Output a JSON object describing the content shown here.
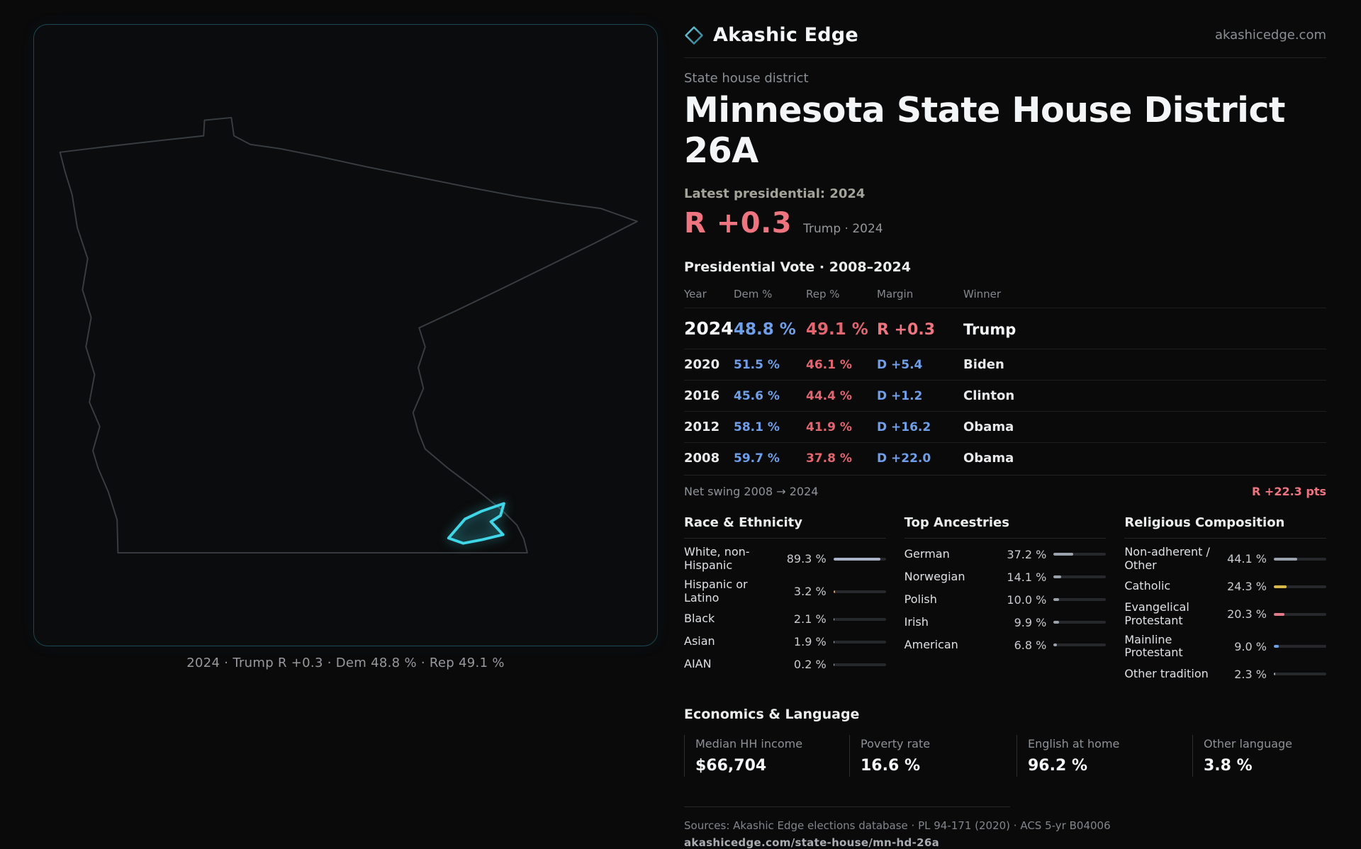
{
  "brand": {
    "name": "Akashic Edge",
    "domain": "akashicedge.com"
  },
  "page": {
    "kicker": "State house district",
    "title": "Minnesota State House District 26A",
    "latest_label": "Latest presidential: 2024",
    "headline_margin": "R +0.3",
    "headline_sub": "Trump · 2024"
  },
  "map": {
    "caption": "2024 · Trump R +0.3 · Dem 48.8 % · Rep 49.1 %"
  },
  "vote_table": {
    "title": "Presidential Vote · 2008–2024",
    "columns": [
      "Year",
      "Dem %",
      "Rep %",
      "Margin",
      "Winner"
    ],
    "rows": [
      {
        "year": "2024",
        "dem": "48.8 %",
        "rep": "49.1 %",
        "margin": "R +0.3",
        "winner": "Trump",
        "margin_color": "#ee7580"
      },
      {
        "year": "2020",
        "dem": "51.5 %",
        "rep": "46.1 %",
        "margin": "D +5.4",
        "winner": "Biden",
        "margin_color": "#6f9fe8"
      },
      {
        "year": "2016",
        "dem": "45.6 %",
        "rep": "44.4 %",
        "margin": "D +1.2",
        "winner": "Clinton",
        "margin_color": "#6f9fe8"
      },
      {
        "year": "2012",
        "dem": "58.1 %",
        "rep": "41.9 %",
        "margin": "D +16.2",
        "winner": "Obama",
        "margin_color": "#6f9fe8"
      },
      {
        "year": "2008",
        "dem": "59.7 %",
        "rep": "37.8 %",
        "margin": "D +22.0",
        "winner": "Obama",
        "margin_color": "#6f9fe8"
      }
    ]
  },
  "net_swing": {
    "label": "Net swing 2008 → 2024",
    "value": "R +22.3 pts"
  },
  "demographics": {
    "race": {
      "title": "Race & Ethnicity",
      "rows": [
        {
          "label": "White, non-Hispanic",
          "value": "89.3 %",
          "pct": 89.3,
          "color": "#a9b2c6"
        },
        {
          "label": "Hispanic or Latino",
          "value": "3.2 %",
          "pct": 3.2,
          "color": "#d99a5b"
        },
        {
          "label": "Black",
          "value": "2.1 %",
          "pct": 2.1,
          "color": "#a9b2c6"
        },
        {
          "label": "Asian",
          "value": "1.9 %",
          "pct": 1.9,
          "color": "#a9b2c6"
        },
        {
          "label": "AIAN",
          "value": "0.2 %",
          "pct": 0.2,
          "color": "#a9b2c6"
        }
      ]
    },
    "ancestry": {
      "title": "Top Ancestries",
      "rows": [
        {
          "label": "German",
          "value": "37.2 %",
          "pct": 37.2,
          "color": "#9aa2ad"
        },
        {
          "label": "Norwegian",
          "value": "14.1 %",
          "pct": 14.1,
          "color": "#9aa2ad"
        },
        {
          "label": "Polish",
          "value": "10.0 %",
          "pct": 10.0,
          "color": "#9aa2ad"
        },
        {
          "label": "Irish",
          "value": "9.9 %",
          "pct": 9.9,
          "color": "#9aa2ad"
        },
        {
          "label": "American",
          "value": "6.8 %",
          "pct": 6.8,
          "color": "#9aa2ad"
        }
      ]
    },
    "religion": {
      "title": "Religious Composition",
      "rows": [
        {
          "label": "Non-adherent / Other",
          "value": "44.1 %",
          "pct": 44.1,
          "color": "#9aa2ad"
        },
        {
          "label": "Catholic",
          "value": "24.3 %",
          "pct": 24.3,
          "color": "#d9b84a"
        },
        {
          "label": "Evangelical Protestant",
          "value": "20.3 %",
          "pct": 20.3,
          "color": "#e07a88"
        },
        {
          "label": "Mainline Protestant",
          "value": "9.0 %",
          "pct": 9.0,
          "color": "#6f9fe8"
        },
        {
          "label": "Other tradition",
          "value": "2.3 %",
          "pct": 2.3,
          "color": "#9aa2ad"
        }
      ]
    }
  },
  "economics": {
    "title": "Economics & Language",
    "stats": [
      {
        "label": "Median HH income",
        "value": "$66,704"
      },
      {
        "label": "Poverty rate",
        "value": "16.6 %"
      },
      {
        "label": "English at home",
        "value": "96.2 %"
      },
      {
        "label": "Other language",
        "value": "3.8 %"
      }
    ]
  },
  "footer": {
    "sources": "Sources: Akashic Edge elections database · PL 94-171 (2020) · ACS 5-yr B04006",
    "permalink": "akashicedge.com/state-house/mn-hd-26a"
  },
  "chart_data": [
    {
      "type": "table",
      "title": "Presidential Vote · 2008–2024",
      "columns": [
        "Year",
        "Dem %",
        "Rep %",
        "Margin",
        "Winner"
      ],
      "rows": [
        [
          "2024",
          48.8,
          49.1,
          "R +0.3",
          "Trump"
        ],
        [
          "2020",
          51.5,
          46.1,
          "D +5.4",
          "Biden"
        ],
        [
          "2016",
          45.6,
          44.4,
          "D +1.2",
          "Clinton"
        ],
        [
          "2012",
          58.1,
          41.9,
          "D +16.2",
          "Obama"
        ],
        [
          "2008",
          59.7,
          37.8,
          "D +22.0",
          "Obama"
        ]
      ]
    },
    {
      "type": "bar",
      "title": "Race & Ethnicity",
      "categories": [
        "White, non-Hispanic",
        "Hispanic or Latino",
        "Black",
        "Asian",
        "AIAN"
      ],
      "values": [
        89.3,
        3.2,
        2.1,
        1.9,
        0.2
      ],
      "xlim": [
        0,
        100
      ]
    },
    {
      "type": "bar",
      "title": "Top Ancestries",
      "categories": [
        "German",
        "Norwegian",
        "Polish",
        "Irish",
        "American"
      ],
      "values": [
        37.2,
        14.1,
        10.0,
        9.9,
        6.8
      ],
      "xlim": [
        0,
        100
      ]
    },
    {
      "type": "bar",
      "title": "Religious Composition",
      "categories": [
        "Non-adherent / Other",
        "Catholic",
        "Evangelical Protestant",
        "Mainline Protestant",
        "Other tradition"
      ],
      "values": [
        44.1,
        24.3,
        20.3,
        9.0,
        2.3
      ],
      "xlim": [
        0,
        100
      ]
    }
  ]
}
